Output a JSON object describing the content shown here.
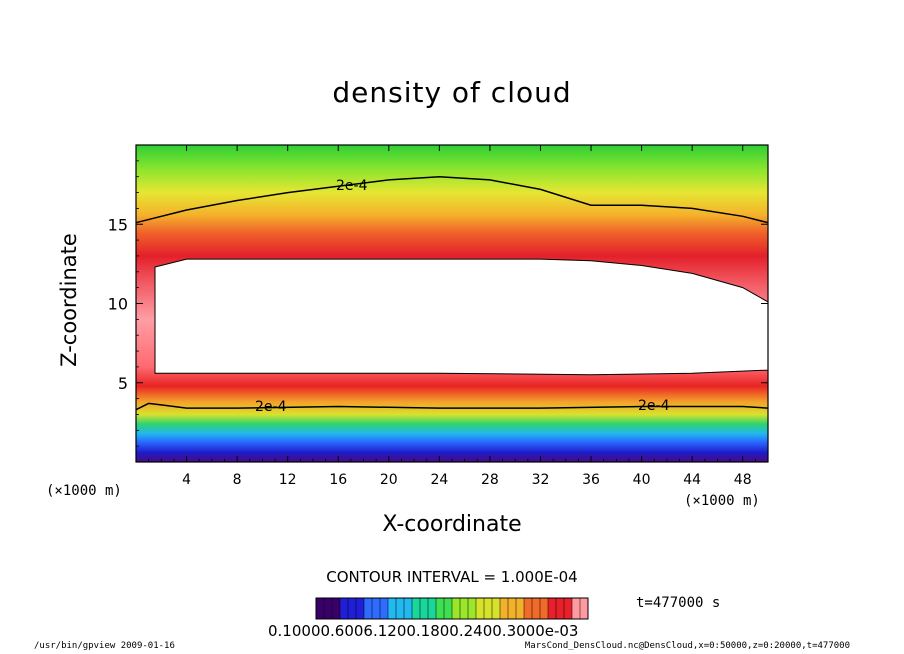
{
  "chart_data": {
    "type": "heatmap",
    "title": "density of cloud",
    "xlabel": "X-coordinate",
    "ylabel": "Z-coordinate",
    "x_unit": "(×1000 m)",
    "y_unit": "(×1000 m)",
    "xlim": [
      0,
      50
    ],
    "ylim": [
      0,
      20
    ],
    "x_ticks": [
      4,
      8,
      12,
      16,
      20,
      24,
      28,
      32,
      36,
      40,
      44,
      48
    ],
    "y_ticks": [
      5,
      10,
      15
    ],
    "contour_level_label": "2e-4",
    "contour_interval": "CONTOUR INTERVAL = 1.000E-04",
    "time": "t=477000 s",
    "colorbar_labels": "0.10000.6006.1200.1800.2400.3000e-03",
    "cloud_top_contour": [
      [
        0,
        15.1
      ],
      [
        4,
        15.9
      ],
      [
        8,
        16.5
      ],
      [
        12,
        17.0
      ],
      [
        16,
        17.4
      ],
      [
        20,
        17.8
      ],
      [
        24,
        18.0
      ],
      [
        28,
        17.8
      ],
      [
        32,
        17.2
      ],
      [
        36,
        16.2
      ],
      [
        40,
        16.2
      ],
      [
        44,
        16.0
      ],
      [
        48,
        15.5
      ],
      [
        50,
        15.1
      ]
    ],
    "white_region_top": [
      [
        1.5,
        12.3
      ],
      [
        4,
        12.8
      ],
      [
        12,
        12.8
      ],
      [
        24,
        12.8
      ],
      [
        32,
        12.8
      ],
      [
        36,
        12.7
      ],
      [
        40,
        12.4
      ],
      [
        44,
        11.9
      ],
      [
        48,
        11.0
      ],
      [
        50,
        10.1
      ]
    ],
    "white_region_bottom": [
      [
        1.5,
        5.6
      ],
      [
        8,
        5.6
      ],
      [
        24,
        5.6
      ],
      [
        36,
        5.5
      ],
      [
        44,
        5.6
      ],
      [
        50,
        5.8
      ]
    ],
    "lower_contour": [
      [
        0,
        3.3
      ],
      [
        1,
        3.7
      ],
      [
        2,
        3.6
      ],
      [
        4,
        3.4
      ],
      [
        8,
        3.4
      ],
      [
        16,
        3.5
      ],
      [
        24,
        3.4
      ],
      [
        32,
        3.4
      ],
      [
        40,
        3.5
      ],
      [
        48,
        3.5
      ],
      [
        50,
        3.4
      ]
    ],
    "colorbar_colors": [
      "#3a006a",
      "#1f1fd8",
      "#2e6bff",
      "#22b8f0",
      "#19d69a",
      "#3ee052",
      "#9ae62a",
      "#d7e32a",
      "#f3b02a",
      "#f06a2a",
      "#e8202a",
      "#ff9aa0"
    ]
  },
  "footer": {
    "left": "/usr/bin/gpview   2009-01-16",
    "right": "MarsCond_DensCloud.nc@DensCloud,x=0:50000,z=0:20000,t=477000"
  }
}
